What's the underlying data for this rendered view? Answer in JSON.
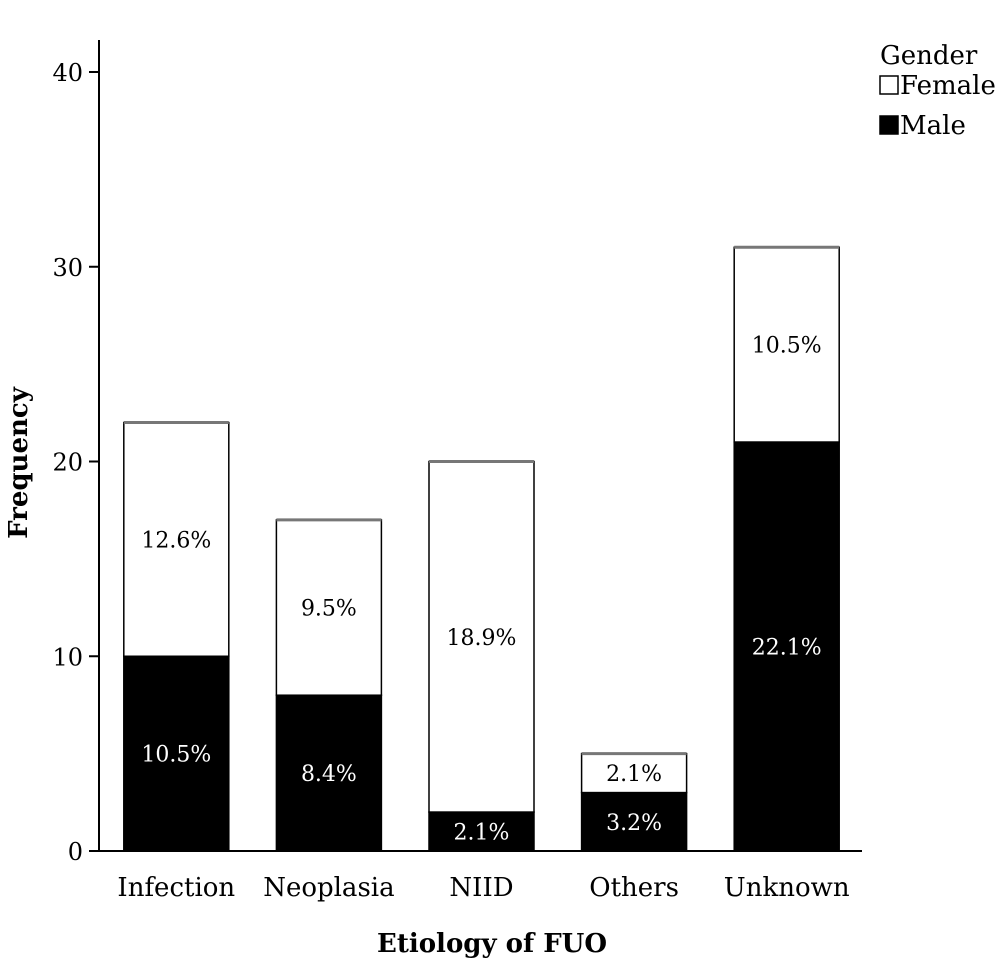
{
  "chart_data": {
    "type": "bar",
    "stacked": true,
    "xlabel": "Etiology of FUO",
    "ylabel": "Frequency",
    "ylim": [
      0,
      40
    ],
    "yticks": [
      "0",
      "10",
      "20",
      "30",
      "40"
    ],
    "categories": [
      "Infection",
      "Neoplasia",
      "NIID",
      "Others",
      "Unknown"
    ],
    "legend": {
      "title": "Gender",
      "position": "top-right"
    },
    "series": [
      {
        "name": "Male",
        "color": "#000000",
        "label_color": "#ffffff",
        "values": [
          10,
          8,
          2,
          3,
          21
        ],
        "labels": [
          "10.5%",
          "8.4%",
          "2.1%",
          "3.2%",
          "22.1%"
        ]
      },
      {
        "name": "Female",
        "color": "#ffffff",
        "label_color": "#000000",
        "values": [
          12,
          9,
          18,
          2,
          10
        ],
        "labels": [
          "12.6%",
          "9.5%",
          "18.9%",
          "2.1%",
          "10.5%"
        ]
      }
    ]
  }
}
